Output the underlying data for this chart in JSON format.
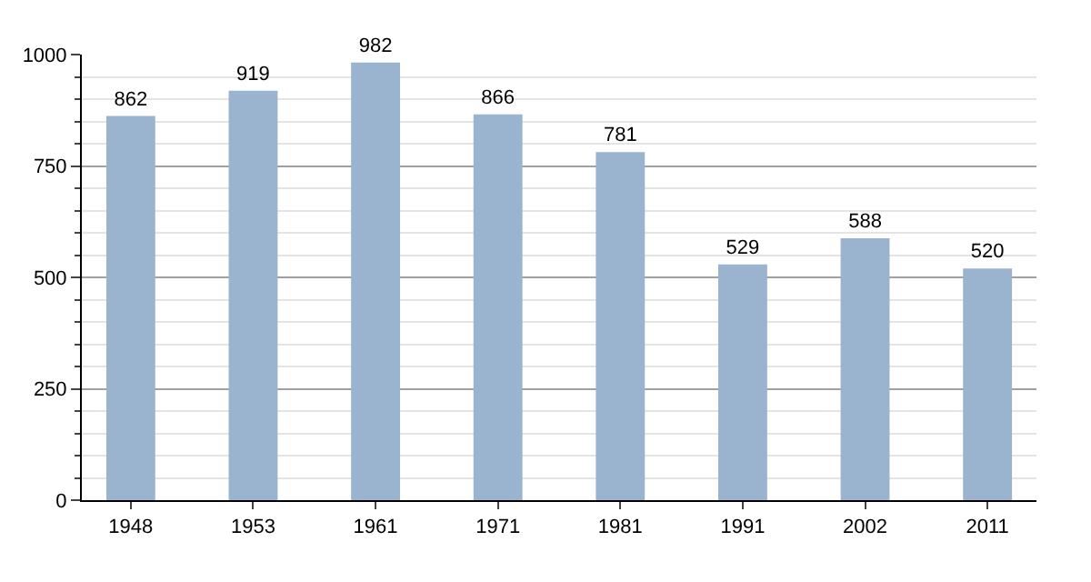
{
  "chart_data": {
    "type": "bar",
    "categories": [
      "1948",
      "1953",
      "1961",
      "1971",
      "1981",
      "1991",
      "2002",
      "2011"
    ],
    "values": [
      862,
      919,
      982,
      866,
      781,
      529,
      588,
      520
    ],
    "color": "#9ab3cf",
    "data_labels": true,
    "grid": "y",
    "ylim": [
      0,
      1000
    ],
    "yticks": [
      0,
      {
        "value": 50,
        "label": null
      },
      {
        "value": 100,
        "label": null
      },
      {
        "value": 150,
        "label": null
      },
      {
        "value": 200,
        "label": null
      },
      250,
      {
        "value": 300,
        "label": null
      },
      {
        "value": 350,
        "label": null
      },
      {
        "value": 400,
        "label": null
      },
      {
        "value": 450,
        "label": null
      },
      500,
      {
        "value": 550,
        "label": null
      },
      {
        "value": 600,
        "label": null
      },
      {
        "value": 650,
        "label": null
      },
      {
        "value": 700,
        "label": null
      },
      750,
      {
        "value": 800,
        "label": null
      },
      {
        "value": 850,
        "label": null
      },
      {
        "value": 900,
        "label": null
      },
      {
        "value": 950,
        "label": null
      },
      1000
    ]
  }
}
